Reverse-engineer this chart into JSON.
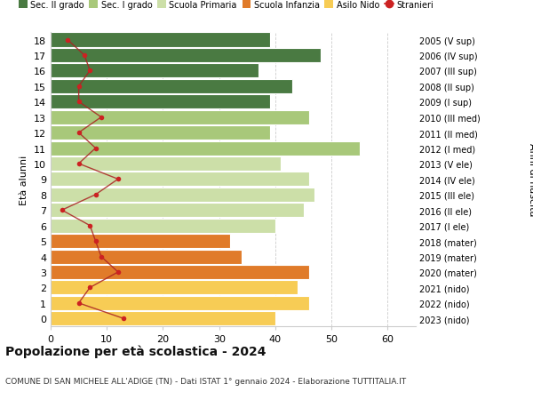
{
  "ages": [
    0,
    1,
    2,
    3,
    4,
    5,
    6,
    7,
    8,
    9,
    10,
    11,
    12,
    13,
    14,
    15,
    16,
    17,
    18
  ],
  "right_labels": [
    "2023 (nido)",
    "2022 (nido)",
    "2021 (nido)",
    "2020 (mater)",
    "2019 (mater)",
    "2018 (mater)",
    "2017 (I ele)",
    "2016 (II ele)",
    "2015 (III ele)",
    "2014 (IV ele)",
    "2013 (V ele)",
    "2012 (I med)",
    "2011 (II med)",
    "2010 (III med)",
    "2009 (I sup)",
    "2008 (II sup)",
    "2007 (III sup)",
    "2006 (IV sup)",
    "2005 (V sup)"
  ],
  "bar_values": [
    40,
    46,
    44,
    46,
    34,
    32,
    40,
    45,
    47,
    46,
    41,
    55,
    39,
    46,
    39,
    43,
    37,
    48,
    39
  ],
  "bar_colors": [
    "#f7cc55",
    "#f7cc55",
    "#f7cc55",
    "#e07b2a",
    "#e07b2a",
    "#e07b2a",
    "#ccdfa8",
    "#ccdfa8",
    "#ccdfa8",
    "#ccdfa8",
    "#ccdfa8",
    "#a8c87a",
    "#a8c87a",
    "#a8c87a",
    "#4a7a42",
    "#4a7a42",
    "#4a7a42",
    "#4a7a42",
    "#4a7a42"
  ],
  "stranieri_values": [
    13,
    5,
    7,
    12,
    9,
    8,
    7,
    2,
    8,
    12,
    5,
    8,
    5,
    9,
    5,
    5,
    7,
    6,
    3
  ],
  "legend_labels": [
    "Sec. II grado",
    "Sec. I grado",
    "Scuola Primaria",
    "Scuola Infanzia",
    "Asilo Nido",
    "Stranieri"
  ],
  "legend_colors": [
    "#4a7a42",
    "#a8c87a",
    "#ccdfa8",
    "#e07b2a",
    "#f7cc55",
    "#cc2222"
  ],
  "title": "Popolazione per età scolastica - 2024",
  "subtitle": "COMUNE DI SAN MICHELE ALL'ADIGE (TN) - Dati ISTAT 1° gennaio 2024 - Elaborazione TUTTITALIA.IT",
  "ylabel_left": "Età alunni",
  "ylabel_right": "Anni di nascita",
  "xlim": [
    0,
    65
  ],
  "xticks": [
    0,
    10,
    20,
    30,
    40,
    50,
    60
  ],
  "background_color": "#ffffff",
  "grid_color": "#cccccc",
  "bar_height": 0.92
}
